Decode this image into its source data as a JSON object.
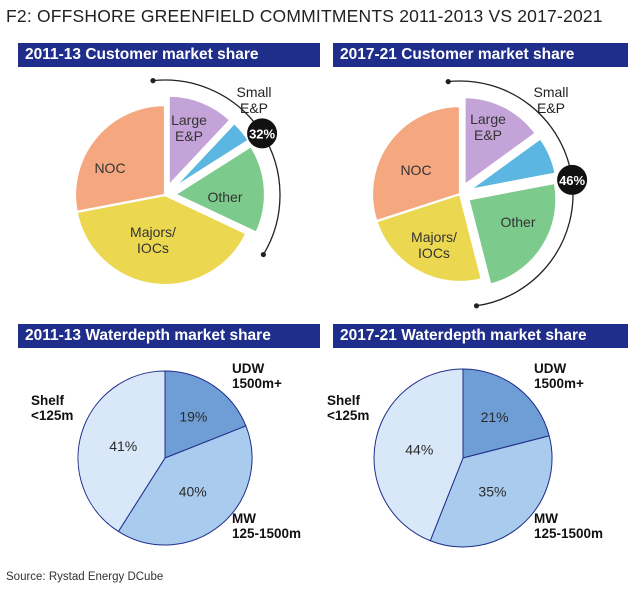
{
  "figure_title": "F2: OFFSHORE GREENFIELD COMMITMENTS 2011-2013 VS 2017-2021",
  "source": "Source: Rystad Energy DCube",
  "colors": {
    "header_bg": "#1f2e8a",
    "noc": "#f5a880",
    "majors": "#ecd850",
    "large_ep": "#c4a4d8",
    "small_ep": "#5cb6e2",
    "other": "#7ccb8c",
    "udw": "#6f9ed6",
    "mw": "#a8cbee",
    "shelf": "#d8e8f8"
  },
  "chart_data": [
    {
      "type": "pie",
      "title": "2011-13 Customer market share",
      "slices": [
        {
          "label": "Large E&P",
          "value": 12
        },
        {
          "label": "Small E&P",
          "value": 4
        },
        {
          "label": "Other",
          "value": 16
        },
        {
          "label": "Majors/ IOCs",
          "value": 40
        },
        {
          "label": "NOC",
          "value": 28
        }
      ],
      "annotation": {
        "text": "32%",
        "covers": [
          "Large E&P",
          "Small E&P",
          "Other"
        ]
      }
    },
    {
      "type": "pie",
      "title": "2017-21 Customer market share",
      "slices": [
        {
          "label": "Large E&P",
          "value": 15
        },
        {
          "label": "Small E&P",
          "value": 7
        },
        {
          "label": "Other",
          "value": 24
        },
        {
          "label": "Majors/ IOCs",
          "value": 24
        },
        {
          "label": "NOC",
          "value": 30
        }
      ],
      "annotation": {
        "text": "46%",
        "covers": [
          "Large E&P",
          "Small E&P",
          "Other"
        ]
      }
    },
    {
      "type": "pie",
      "title": "2011-13 Waterdepth market share",
      "slices": [
        {
          "label": "UDW 1500m+",
          "value": 19,
          "data_label": "19%"
        },
        {
          "label": "MW 125-1500m",
          "value": 40,
          "data_label": "40%"
        },
        {
          "label": "Shelf <125m",
          "value": 41,
          "data_label": "41%"
        }
      ]
    },
    {
      "type": "pie",
      "title": "2017-21 Waterdepth market share",
      "slices": [
        {
          "label": "UDW 1500m+",
          "value": 21,
          "data_label": "21%"
        },
        {
          "label": "MW 125-1500m",
          "value": 35,
          "data_label": "35%"
        },
        {
          "label": "Shelf <125m",
          "value": 44,
          "data_label": "44%"
        }
      ]
    }
  ]
}
